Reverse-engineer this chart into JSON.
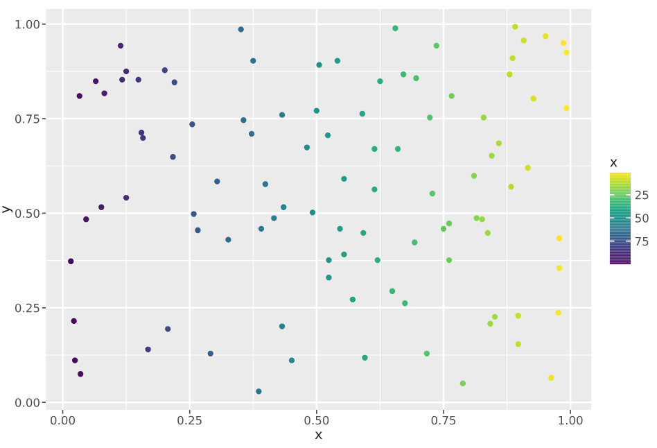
{
  "chart_data": {
    "type": "scatter",
    "xlabel": "x",
    "ylabel": "y",
    "clabel": "x",
    "x": [
      0.033,
      0.065,
      0.082,
      0.114,
      0.117,
      0.125,
      0.149,
      0.155,
      0.158,
      0.201,
      0.22,
      0.217,
      0.255,
      0.125,
      0.076,
      0.046,
      0.258,
      0.304,
      0.351,
      0.375,
      0.356,
      0.372,
      0.399,
      0.432,
      0.435,
      0.416,
      0.481,
      0.492,
      0.5,
      0.505,
      0.522,
      0.541,
      0.655,
      0.736,
      0.625,
      0.671,
      0.696,
      0.766,
      0.59,
      0.723,
      0.829,
      0.614,
      0.66,
      0.554,
      0.614,
      0.728,
      0.81,
      0.845,
      0.859,
      0.916,
      0.883,
      0.815,
      0.826,
      0.891,
      0.908,
      0.951,
      0.986,
      0.992,
      0.886,
      0.88,
      0.927,
      0.992,
      0.016,
      0.266,
      0.326,
      0.391,
      0.524,
      0.524,
      0.022,
      0.024,
      0.035,
      0.168,
      0.207,
      0.291,
      0.432,
      0.451,
      0.386,
      0.546,
      0.592,
      0.554,
      0.62,
      0.571,
      0.649,
      0.674,
      0.693,
      0.761,
      0.75,
      0.837,
      0.761,
      0.595,
      0.717,
      0.788,
      0.842,
      0.851,
      0.897,
      0.897,
      0.978,
      0.978,
      0.976,
      0.962
    ],
    "values": [
      0.81,
      0.849,
      0.817,
      0.943,
      0.853,
      0.875,
      0.853,
      0.713,
      0.699,
      0.878,
      0.846,
      0.649,
      0.735,
      0.541,
      0.516,
      0.484,
      0.498,
      0.584,
      0.986,
      0.903,
      0.746,
      0.71,
      0.577,
      0.76,
      0.516,
      0.487,
      0.674,
      0.502,
      0.771,
      0.892,
      0.706,
      0.903,
      0.989,
      0.943,
      0.849,
      0.867,
      0.857,
      0.81,
      0.763,
      0.753,
      0.753,
      0.67,
      0.67,
      0.591,
      0.563,
      0.552,
      0.599,
      0.652,
      0.685,
      0.62,
      0.57,
      0.487,
      0.484,
      0.993,
      0.957,
      0.968,
      0.95,
      0.925,
      0.91,
      0.867,
      0.803,
      0.778,
      0.373,
      0.455,
      0.43,
      0.459,
      0.376,
      0.33,
      0.215,
      0.111,
      0.075,
      0.14,
      0.194,
      0.129,
      0.201,
      0.111,
      0.029,
      0.459,
      0.448,
      0.391,
      0.376,
      0.272,
      0.294,
      0.262,
      0.423,
      0.473,
      0.459,
      0.448,
      0.376,
      0.118,
      0.129,
      0.05,
      0.208,
      0.226,
      0.229,
      0.154,
      0.434,
      0.355,
      0.237,
      0.065
    ],
    "cvalues": [
      97,
      94,
      92,
      89,
      88,
      88,
      85,
      85,
      84,
      80,
      78,
      78,
      75,
      88,
      92,
      95,
      74,
      70,
      65,
      63,
      64,
      63,
      60,
      57,
      57,
      58,
      52,
      51,
      50,
      50,
      48,
      46,
      35,
      26,
      38,
      33,
      30,
      23,
      41,
      28,
      17,
      39,
      34,
      45,
      39,
      27,
      19,
      16,
      14,
      8,
      12,
      19,
      17,
      11,
      9,
      5,
      1,
      1,
      11,
      12,
      7,
      1,
      98,
      73,
      67,
      61,
      48,
      48,
      98,
      98,
      97,
      83,
      79,
      71,
      57,
      55,
      61,
      45,
      41,
      45,
      38,
      43,
      35,
      33,
      31,
      24,
      25,
      16,
      24,
      41,
      28,
      21,
      16,
      15,
      10,
      10,
      2,
      2,
      2,
      4
    ],
    "clim": [
      1,
      100
    ],
    "cticks": [
      25,
      50,
      75
    ],
    "xlim": [
      -0.033,
      1.041
    ],
    "ylim": [
      -0.02,
      1.04
    ],
    "xticks": [
      {
        "value": 0,
        "label": "0.00"
      },
      {
        "value": 0.25,
        "label": "0.25"
      },
      {
        "value": 0.5,
        "label": "0.50"
      },
      {
        "value": 0.75,
        "label": "0.75"
      },
      {
        "value": 1,
        "label": "1.00"
      }
    ],
    "yticks": [
      {
        "value": 0,
        "label": "0.00"
      },
      {
        "value": 0.25,
        "label": "0.25"
      },
      {
        "value": 0.5,
        "label": "0.50"
      },
      {
        "value": 0.75,
        "label": "0.75"
      },
      {
        "value": 1,
        "label": "1.00"
      }
    ],
    "grid": true,
    "marker": "circle"
  }
}
